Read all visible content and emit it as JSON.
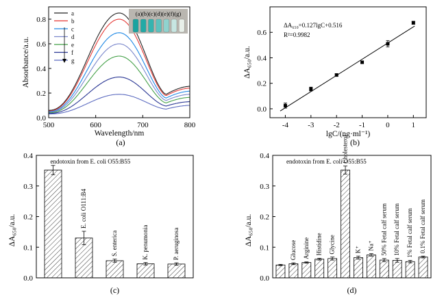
{
  "chart_data": [
    {
      "panel": "(a)",
      "type": "line",
      "xlabel": "Wavelength/nm",
      "ylabel": "Absorbance/a.u.",
      "xlim": [
        500,
        800
      ],
      "ylim": [
        0,
        0.9
      ],
      "xticks": [
        500,
        600,
        700,
        800
      ],
      "yticks": [
        0.0,
        0.2,
        0.4,
        0.6,
        0.8
      ],
      "inset_label": "(a)(b)(c)(d)(e)(f)(g)",
      "legend_position": "top-left",
      "series": [
        {
          "name": "a",
          "color": "#222222",
          "peak": 0.85,
          "valley": 0.19,
          "start": 0.06,
          "end": 0.255
        },
        {
          "name": "b",
          "color": "#e53935",
          "peak": 0.8,
          "valley": 0.18,
          "start": 0.055,
          "end": 0.24
        },
        {
          "name": "c",
          "color": "#1e88e5",
          "peak": 0.69,
          "valley": 0.16,
          "start": 0.05,
          "end": 0.215
        },
        {
          "name": "d",
          "color": "#7986cb",
          "peak": 0.6,
          "valley": 0.14,
          "start": 0.045,
          "end": 0.19
        },
        {
          "name": "e",
          "color": "#43a047",
          "peak": 0.5,
          "valley": 0.12,
          "start": 0.04,
          "end": 0.165
        },
        {
          "name": "f",
          "color": "#283593",
          "peak": 0.33,
          "valley": 0.095,
          "start": 0.035,
          "end": 0.13
        },
        {
          "name": "g",
          "color": "#5c6bc0",
          "peak": 0.19,
          "valley": 0.07,
          "start": 0.03,
          "end": 0.1
        }
      ]
    },
    {
      "panel": "(b)",
      "type": "scatter",
      "xlabel": "lgC/(ng·ml⁻¹)",
      "ylabel": "ΔA₆₅₀/a.u.",
      "xlim": [
        -4.6,
        1.5
      ],
      "ylim": [
        -0.07,
        0.8
      ],
      "xticks": [
        -4,
        -3,
        -2,
        -1,
        0,
        1
      ],
      "yticks": [
        0.0,
        0.2,
        0.4,
        0.6
      ],
      "equation": "ΔA₆₅₀=0.127lgC+0.516",
      "r_squared": "R²=0.9982",
      "fit": {
        "slope": 0.127,
        "intercept": 0.516,
        "x_range": [
          -4.2,
          1.05
        ]
      },
      "x": [
        -4,
        -3,
        -2,
        -1,
        0,
        1
      ],
      "y": [
        0.025,
        0.155,
        0.265,
        0.365,
        0.51,
        0.675
      ],
      "error": [
        0.02,
        0.015,
        0.01,
        0.01,
        0.025,
        0.012
      ]
    },
    {
      "panel": "(c)",
      "type": "bar",
      "ylabel": "ΔA₆₅₀/a.u.",
      "ylim": [
        0,
        0.4
      ],
      "yticks": [
        0.0,
        0.1,
        0.2,
        0.3,
        0.4
      ],
      "categories": [
        "endotoxin from E. coli O55:B55",
        "E. coli O111:B4",
        "S. enterica",
        "K. penumonia",
        "P. aeruginosa"
      ],
      "values": [
        0.352,
        0.13,
        0.056,
        0.046,
        0.045
      ],
      "error": [
        0.015,
        0.022,
        0.005,
        0.004,
        0.004
      ]
    },
    {
      "panel": "(d)",
      "type": "bar",
      "ylabel": "ΔA₆₅₀/a.u.",
      "ylim": [
        0,
        0.4
      ],
      "yticks": [
        0.0,
        0.1,
        0.2,
        0.3,
        0.4
      ],
      "title": "endotoxin from E. coli O55:B55",
      "categories": [
        "",
        "Glucose",
        "Arginine",
        "Histidine",
        "Glycine",
        "Cholesterol",
        "K⁺",
        "Na⁺",
        "50%  Fetal calf serum",
        "10%  Fetal calf serum",
        "1%  Fetal calf serum",
        "0.1%  Fetal calf serum"
      ],
      "values": [
        0.042,
        0.046,
        0.05,
        0.061,
        0.063,
        0.352,
        0.066,
        0.075,
        0.058,
        0.057,
        0.053,
        0.068
      ],
      "error": [
        0.002,
        0.003,
        0.002,
        0.003,
        0.005,
        0.013,
        0.005,
        0.004,
        0.005,
        0.006,
        0.004,
        0.003
      ]
    }
  ]
}
